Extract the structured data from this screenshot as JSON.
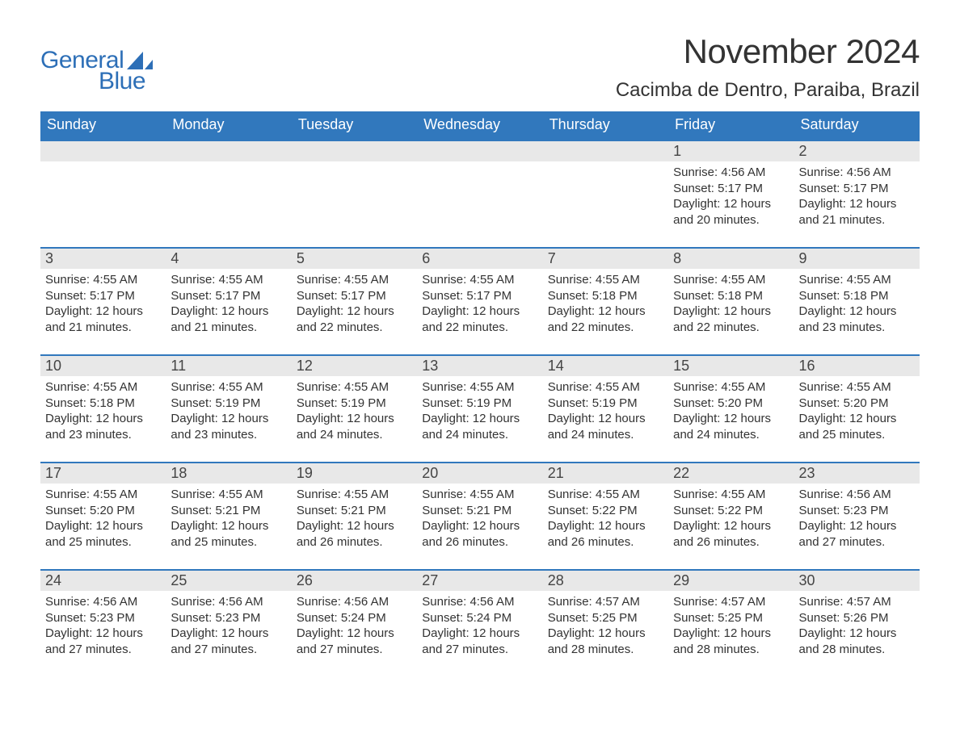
{
  "logo": {
    "text1": "General",
    "text2": "Blue"
  },
  "title": "November 2024",
  "location": "Cacimba de Dentro, Paraiba, Brazil",
  "colors": {
    "header_bg": "#3178bd",
    "header_text": "#ffffff",
    "day_border": "#3178bd",
    "day_number_bg": "#e8e8e8",
    "body_text": "#333333",
    "logo_color": "#2d6fb7",
    "page_bg": "#ffffff"
  },
  "typography": {
    "title_fontsize": 42,
    "location_fontsize": 24,
    "header_fontsize": 18,
    "daynum_fontsize": 18,
    "body_fontsize": 15
  },
  "day_headers": [
    "Sunday",
    "Monday",
    "Tuesday",
    "Wednesday",
    "Thursday",
    "Friday",
    "Saturday"
  ],
  "weeks": [
    [
      null,
      null,
      null,
      null,
      null,
      {
        "n": "1",
        "sunrise": "4:56 AM",
        "sunset": "5:17 PM",
        "daylight": "12 hours and 20 minutes."
      },
      {
        "n": "2",
        "sunrise": "4:56 AM",
        "sunset": "5:17 PM",
        "daylight": "12 hours and 21 minutes."
      }
    ],
    [
      {
        "n": "3",
        "sunrise": "4:55 AM",
        "sunset": "5:17 PM",
        "daylight": "12 hours and 21 minutes."
      },
      {
        "n": "4",
        "sunrise": "4:55 AM",
        "sunset": "5:17 PM",
        "daylight": "12 hours and 21 minutes."
      },
      {
        "n": "5",
        "sunrise": "4:55 AM",
        "sunset": "5:17 PM",
        "daylight": "12 hours and 22 minutes."
      },
      {
        "n": "6",
        "sunrise": "4:55 AM",
        "sunset": "5:17 PM",
        "daylight": "12 hours and 22 minutes."
      },
      {
        "n": "7",
        "sunrise": "4:55 AM",
        "sunset": "5:18 PM",
        "daylight": "12 hours and 22 minutes."
      },
      {
        "n": "8",
        "sunrise": "4:55 AM",
        "sunset": "5:18 PM",
        "daylight": "12 hours and 22 minutes."
      },
      {
        "n": "9",
        "sunrise": "4:55 AM",
        "sunset": "5:18 PM",
        "daylight": "12 hours and 23 minutes."
      }
    ],
    [
      {
        "n": "10",
        "sunrise": "4:55 AM",
        "sunset": "5:18 PM",
        "daylight": "12 hours and 23 minutes."
      },
      {
        "n": "11",
        "sunrise": "4:55 AM",
        "sunset": "5:19 PM",
        "daylight": "12 hours and 23 minutes."
      },
      {
        "n": "12",
        "sunrise": "4:55 AM",
        "sunset": "5:19 PM",
        "daylight": "12 hours and 24 minutes."
      },
      {
        "n": "13",
        "sunrise": "4:55 AM",
        "sunset": "5:19 PM",
        "daylight": "12 hours and 24 minutes."
      },
      {
        "n": "14",
        "sunrise": "4:55 AM",
        "sunset": "5:19 PM",
        "daylight": "12 hours and 24 minutes."
      },
      {
        "n": "15",
        "sunrise": "4:55 AM",
        "sunset": "5:20 PM",
        "daylight": "12 hours and 24 minutes."
      },
      {
        "n": "16",
        "sunrise": "4:55 AM",
        "sunset": "5:20 PM",
        "daylight": "12 hours and 25 minutes."
      }
    ],
    [
      {
        "n": "17",
        "sunrise": "4:55 AM",
        "sunset": "5:20 PM",
        "daylight": "12 hours and 25 minutes."
      },
      {
        "n": "18",
        "sunrise": "4:55 AM",
        "sunset": "5:21 PM",
        "daylight": "12 hours and 25 minutes."
      },
      {
        "n": "19",
        "sunrise": "4:55 AM",
        "sunset": "5:21 PM",
        "daylight": "12 hours and 26 minutes."
      },
      {
        "n": "20",
        "sunrise": "4:55 AM",
        "sunset": "5:21 PM",
        "daylight": "12 hours and 26 minutes."
      },
      {
        "n": "21",
        "sunrise": "4:55 AM",
        "sunset": "5:22 PM",
        "daylight": "12 hours and 26 minutes."
      },
      {
        "n": "22",
        "sunrise": "4:55 AM",
        "sunset": "5:22 PM",
        "daylight": "12 hours and 26 minutes."
      },
      {
        "n": "23",
        "sunrise": "4:56 AM",
        "sunset": "5:23 PM",
        "daylight": "12 hours and 27 minutes."
      }
    ],
    [
      {
        "n": "24",
        "sunrise": "4:56 AM",
        "sunset": "5:23 PM",
        "daylight": "12 hours and 27 minutes."
      },
      {
        "n": "25",
        "sunrise": "4:56 AM",
        "sunset": "5:23 PM",
        "daylight": "12 hours and 27 minutes."
      },
      {
        "n": "26",
        "sunrise": "4:56 AM",
        "sunset": "5:24 PM",
        "daylight": "12 hours and 27 minutes."
      },
      {
        "n": "27",
        "sunrise": "4:56 AM",
        "sunset": "5:24 PM",
        "daylight": "12 hours and 27 minutes."
      },
      {
        "n": "28",
        "sunrise": "4:57 AM",
        "sunset": "5:25 PM",
        "daylight": "12 hours and 28 minutes."
      },
      {
        "n": "29",
        "sunrise": "4:57 AM",
        "sunset": "5:25 PM",
        "daylight": "12 hours and 28 minutes."
      },
      {
        "n": "30",
        "sunrise": "4:57 AM",
        "sunset": "5:26 PM",
        "daylight": "12 hours and 28 minutes."
      }
    ]
  ],
  "labels": {
    "sunrise": "Sunrise:",
    "sunset": "Sunset:",
    "daylight": "Daylight:"
  }
}
